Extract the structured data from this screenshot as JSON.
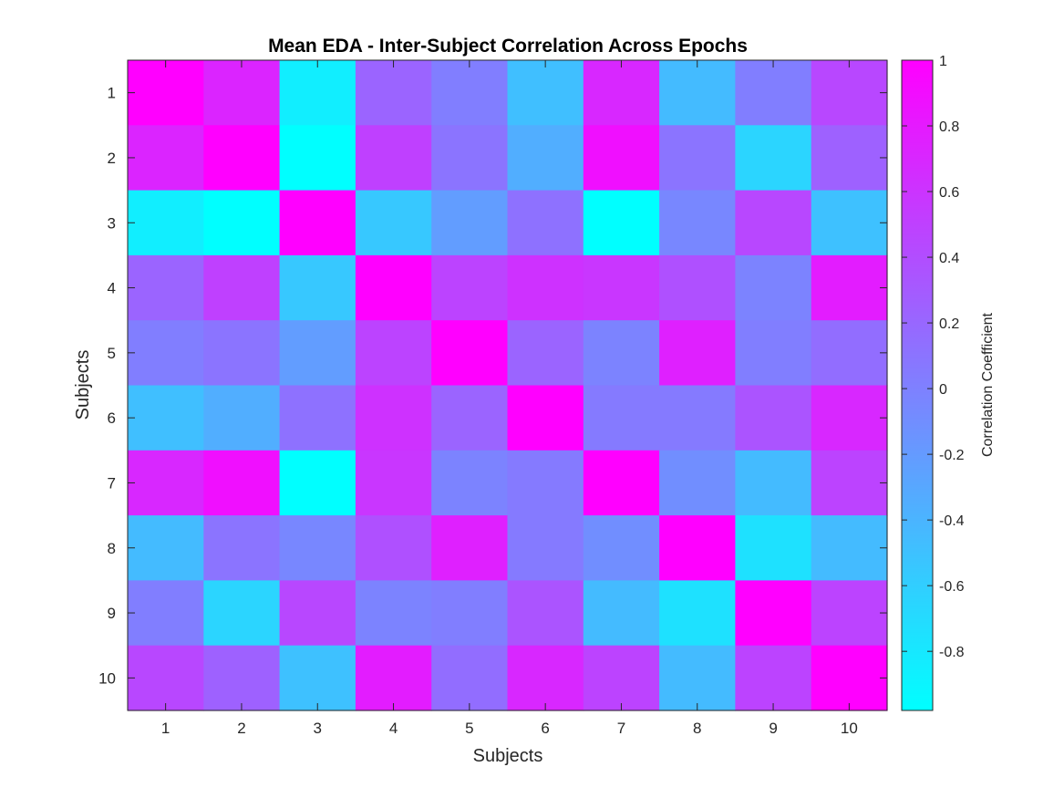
{
  "chart_data": {
    "type": "heatmap",
    "title": "Mean EDA - Inter-Subject Correlation Across Epochs",
    "xlabel": "Subjects",
    "ylabel": "Subjects",
    "x_categories": [
      "1",
      "2",
      "3",
      "4",
      "5",
      "6",
      "7",
      "8",
      "9",
      "10"
    ],
    "y_categories": [
      "1",
      "2",
      "3",
      "4",
      "5",
      "6",
      "7",
      "8",
      "9",
      "10"
    ],
    "values": [
      [
        1.0,
        0.72,
        -0.85,
        0.22,
        0.02,
        -0.48,
        0.7,
        -0.45,
        0.02,
        0.45
      ],
      [
        0.72,
        1.0,
        -0.98,
        0.5,
        0.1,
        -0.35,
        0.88,
        0.1,
        -0.65,
        0.25
      ],
      [
        -0.85,
        -0.98,
        1.0,
        -0.55,
        -0.22,
        0.12,
        -0.98,
        -0.05,
        0.45,
        -0.5
      ],
      [
        0.22,
        0.5,
        -0.55,
        1.0,
        0.48,
        0.62,
        0.58,
        0.38,
        -0.02,
        0.78
      ],
      [
        0.02,
        0.1,
        -0.22,
        0.48,
        1.0,
        0.22,
        -0.02,
        0.75,
        0.02,
        0.15
      ],
      [
        -0.48,
        -0.35,
        0.12,
        0.62,
        0.22,
        1.0,
        0.05,
        0.05,
        0.35,
        0.7
      ],
      [
        0.7,
        0.88,
        -0.98,
        0.58,
        -0.02,
        0.05,
        1.0,
        -0.1,
        -0.45,
        0.48
      ],
      [
        -0.45,
        0.1,
        -0.05,
        0.38,
        0.75,
        0.05,
        -0.1,
        1.0,
        -0.75,
        -0.45
      ],
      [
        0.02,
        -0.65,
        0.45,
        -0.02,
        0.02,
        0.35,
        -0.45,
        -0.75,
        1.0,
        0.48
      ],
      [
        0.45,
        0.25,
        -0.5,
        0.78,
        0.15,
        0.7,
        0.48,
        -0.45,
        0.48,
        1.0
      ]
    ],
    "colormap": "cool",
    "colormap_endpoints": [
      "#00ffff",
      "#ff00ff"
    ],
    "clim": [
      -0.98,
      1
    ],
    "colorbar": {
      "label": "Correlation Coefficient",
      "ticks": [
        1,
        0.8,
        0.6,
        0.4,
        0.2,
        0,
        -0.2,
        -0.4,
        -0.6,
        -0.8
      ],
      "tick_labels": [
        "1",
        "0.8",
        "0.6",
        "0.4",
        "0.2",
        "0",
        "-0.2",
        "-0.4",
        "-0.6",
        "-0.8"
      ],
      "placement": "right"
    }
  }
}
